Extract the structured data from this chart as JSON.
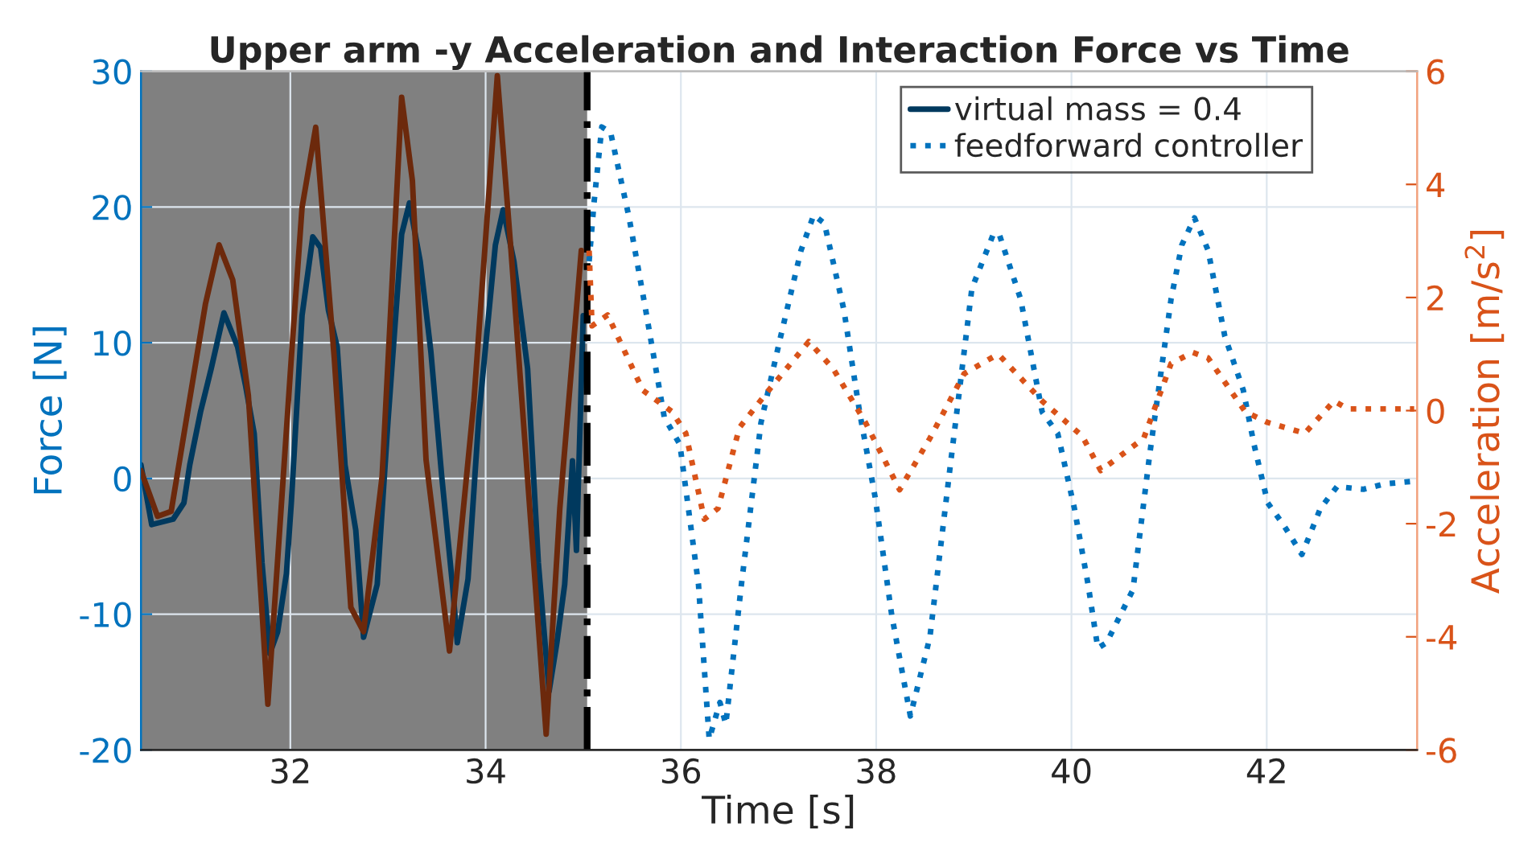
{
  "chart_data": {
    "type": "line",
    "title": "Upper arm -y Acceleration and Interaction Force vs Time",
    "xlabel": "Time [s]",
    "ylabel": "Force [N]",
    "y2label": "Acceleration [m/s$^{2}$]",
    "xlim": [
      30.47,
      43.54
    ],
    "xticks": [
      32,
      34,
      36,
      38,
      40,
      42
    ],
    "ylim": [
      -20,
      30
    ],
    "yticks": [
      -20,
      -10,
      0,
      10,
      20,
      30
    ],
    "y2lim": [
      -6,
      6
    ],
    "y2ticks": [
      -6,
      -4,
      -2,
      0,
      2,
      4,
      6
    ],
    "grid": true,
    "legend": "top right",
    "bands": [
      {
        "axis": "x",
        "from": 30.47,
        "to": 35.04,
        "color": "#808080"
      }
    ],
    "ref_lines": [
      {
        "axis": "x",
        "value": 35.04,
        "color": "#000000",
        "line_style": "dashdot"
      }
    ],
    "series": [
      {
        "name": "virtual mass = 0.4",
        "color": "#00395e",
        "line_style": "solid",
        "x": [
          30.47,
          30.58,
          30.8,
          30.91,
          30.97,
          31.08,
          31.19,
          31.32,
          31.46,
          31.54,
          31.63,
          31.71,
          31.79,
          31.87,
          31.96,
          32.01,
          32.12,
          32.23,
          32.31,
          32.39,
          32.48,
          32.56,
          32.67,
          32.75,
          32.89,
          33.0,
          33.14,
          33.22,
          33.33,
          33.44,
          33.55,
          33.66,
          33.71,
          33.82,
          33.93,
          34.1,
          34.18,
          34.29,
          34.43,
          34.54,
          34.65,
          34.73,
          34.81,
          34.89,
          34.93,
          35.0
        ],
        "values": [
          1,
          -3.4,
          -3,
          -1.8,
          1,
          4.9,
          8.1,
          12.2,
          9.7,
          6.9,
          3.3,
          -6.2,
          -12.9,
          -11.3,
          -7,
          -1.8,
          12,
          17.8,
          17,
          12.4,
          9.7,
          1,
          -3.8,
          -11.7,
          -7.8,
          4.2,
          18,
          20.3,
          16,
          9.3,
          0.2,
          -7.8,
          -12.1,
          -7.4,
          4.5,
          17.2,
          19.8,
          16,
          8.1,
          -6.2,
          -15.7,
          -12.1,
          -7.8,
          1.3,
          -5.3,
          12
        ]
      },
      {
        "name": "feedforward controller",
        "color": "#0072bd",
        "line_style": "dotted",
        "x": [
          35.06,
          35.11,
          35.19,
          35.28,
          35.47,
          35.63,
          35.83,
          35.99,
          36.18,
          36.29,
          36.4,
          36.46,
          36.62,
          36.82,
          37.01,
          37.23,
          37.36,
          37.47,
          37.67,
          37.83,
          37.99,
          38.16,
          38.35,
          38.55,
          38.76,
          38.98,
          39.2,
          39.26,
          39.48,
          39.7,
          39.86,
          40.03,
          40.17,
          40.27,
          40.36,
          40.63,
          40.8,
          41.02,
          41.13,
          41.26,
          41.4,
          41.57,
          41.76,
          41.87,
          42.01,
          42.17,
          42.36,
          42.55,
          42.72,
          42.99,
          43.21,
          43.51
        ],
        "values": [
          16,
          20.3,
          25.9,
          25.5,
          19.2,
          12.8,
          4.5,
          2.5,
          -7.8,
          -19.2,
          -16.5,
          -18.1,
          -7.8,
          4.1,
          10.1,
          16.8,
          19.4,
          18.8,
          12.4,
          4.9,
          -1.4,
          -10.1,
          -17.5,
          -11.7,
          1,
          14,
          18,
          18,
          13.2,
          4.9,
          3.3,
          -2.2,
          -7.8,
          -12.5,
          -12.1,
          -8.2,
          1.7,
          13.2,
          17.2,
          19.2,
          16.8,
          10.5,
          6.5,
          2.5,
          -1.8,
          -3.4,
          -5.6,
          -2.2,
          -0.6,
          -0.8,
          -0.4,
          -0.2
        ]
      },
      {
        "axis": "y2",
        "color": "#6c290c",
        "line_style": "solid",
        "x": [
          30.47,
          30.64,
          30.78,
          31.13,
          31.27,
          31.41,
          31.57,
          31.77,
          32.01,
          32.12,
          32.26,
          32.45,
          32.62,
          32.75,
          32.94,
          33.14,
          33.25,
          33.39,
          33.63,
          33.88,
          34.12,
          34.26,
          34.62,
          34.76,
          34.98
        ],
        "values": [
          -1.06,
          -1.87,
          -1.78,
          1.88,
          2.93,
          2.31,
          0.27,
          -5.19,
          0.93,
          3.59,
          5.01,
          0.93,
          -3.48,
          -3.91,
          -1.16,
          5.54,
          4.07,
          -0.87,
          -4.25,
          0.17,
          5.92,
          2.83,
          -5.72,
          -1.73,
          2.83
        ]
      },
      {
        "axis": "y2",
        "color": "#d95319",
        "line_style": "dotted",
        "x": [
          35.06,
          35.09,
          35.25,
          35.61,
          35.91,
          36.05,
          36.24,
          36.38,
          36.6,
          36.9,
          37.31,
          37.56,
          37.89,
          38.24,
          38.55,
          38.9,
          39.23,
          39.26,
          39.7,
          40.11,
          40.3,
          40.74,
          41.02,
          41.24,
          41.4,
          41.78,
          42.01,
          42.39,
          42.69,
          42.83,
          43.51
        ],
        "values": [
          2.83,
          1.5,
          1.69,
          0.36,
          -0.02,
          -0.4,
          -1.92,
          -1.73,
          -0.3,
          0.36,
          1.22,
          0.74,
          -0.21,
          -1.4,
          -0.49,
          0.65,
          0.98,
          0.98,
          0.17,
          -0.45,
          -1.06,
          -0.49,
          0.83,
          1.03,
          0.93,
          -0.02,
          -0.21,
          -0.4,
          0.17,
          0.03,
          0.03
        ]
      }
    ]
  }
}
